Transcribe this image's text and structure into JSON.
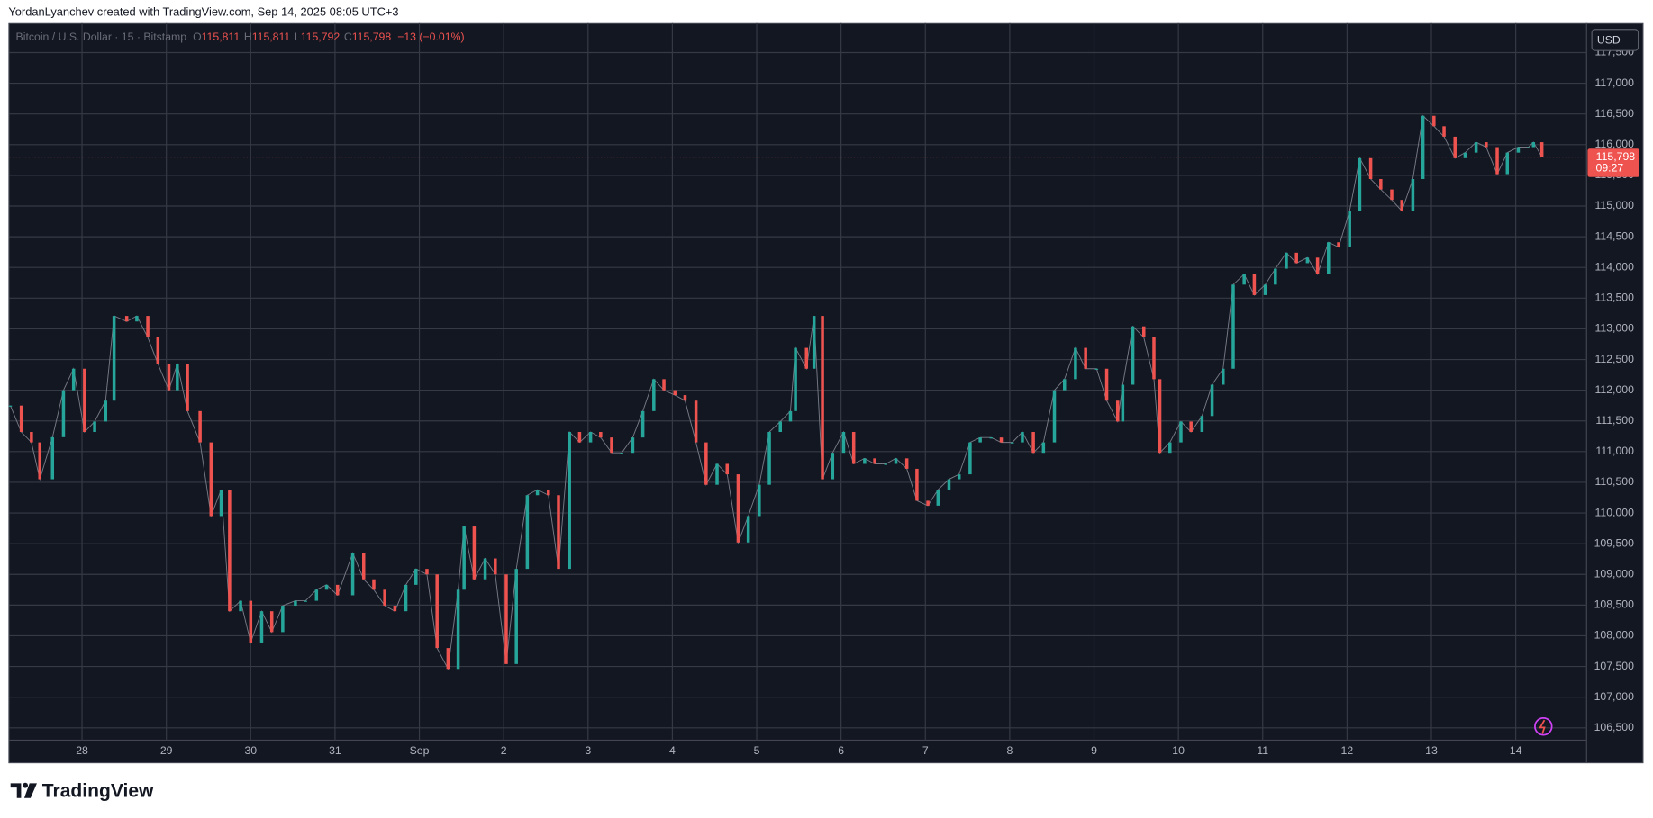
{
  "header": {
    "text": "YordanLyanchev created with TradingView.com, Sep 14, 2025 08:05 UTC+3"
  },
  "footer": {
    "brand": "TradingView"
  },
  "chart_data": {
    "type": "line",
    "legend": {
      "symbol": "Bitcoin / U.S. Dollar · 15 · Bitstamp",
      "items": [
        {
          "key": "O",
          "value": "115,811"
        },
        {
          "key": "H",
          "value": "115,811"
        },
        {
          "key": "L",
          "value": "115,792"
        },
        {
          "key": "C",
          "value": "115,798"
        }
      ],
      "change": "−13 (−0.01%)"
    },
    "currency": "USD",
    "last_price": {
      "value": 115798,
      "label": "115,798"
    },
    "countdown": "09:27",
    "up_color": "#26a69a",
    "down_color": "#ef5350",
    "grid": true,
    "xlim": [
      27.14,
      45.84
    ],
    "xticks": [
      {
        "value": 28,
        "label": "28"
      },
      {
        "value": 29,
        "label": "29"
      },
      {
        "value": 30,
        "label": "30"
      },
      {
        "value": 31,
        "label": "31"
      },
      {
        "value": 32,
        "label": "Sep"
      },
      {
        "value": 33,
        "label": "2"
      },
      {
        "value": 34,
        "label": "3"
      },
      {
        "value": 35,
        "label": "4"
      },
      {
        "value": 36,
        "label": "5"
      },
      {
        "value": 37,
        "label": "6"
      },
      {
        "value": 38,
        "label": "7"
      },
      {
        "value": 39,
        "label": "8"
      },
      {
        "value": 40,
        "label": "9"
      },
      {
        "value": 41,
        "label": "10"
      },
      {
        "value": 42,
        "label": "11"
      },
      {
        "value": 43,
        "label": "12"
      },
      {
        "value": 44,
        "label": "13"
      },
      {
        "value": 45,
        "label": "14"
      }
    ],
    "ylim": [
      106300,
      117980
    ],
    "yticks": [
      {
        "value": 106500,
        "label": "106,500"
      },
      {
        "value": 107000,
        "label": "107,000"
      },
      {
        "value": 107500,
        "label": "107,500"
      },
      {
        "value": 108000,
        "label": "108,000"
      },
      {
        "value": 108500,
        "label": "108,500"
      },
      {
        "value": 109000,
        "label": "109,000"
      },
      {
        "value": 109500,
        "label": "109,500"
      },
      {
        "value": 110000,
        "label": "110,000"
      },
      {
        "value": 110500,
        "label": "110,500"
      },
      {
        "value": 111000,
        "label": "111,000"
      },
      {
        "value": 111500,
        "label": "111,500"
      },
      {
        "value": 112000,
        "label": "112,000"
      },
      {
        "value": 112500,
        "label": "112,500"
      },
      {
        "value": 113000,
        "label": "113,000"
      },
      {
        "value": 113500,
        "label": "113,500"
      },
      {
        "value": 114000,
        "label": "114,000"
      },
      {
        "value": 114500,
        "label": "114,500"
      },
      {
        "value": 115000,
        "label": "115,000"
      },
      {
        "value": 115500,
        "label": "115,500"
      },
      {
        "value": 116000,
        "label": "116,000"
      },
      {
        "value": 116500,
        "label": "116,500"
      },
      {
        "value": 117000,
        "label": "117,000"
      },
      {
        "value": 117500,
        "label": "117,500"
      }
    ],
    "x": [
      27.15,
      27.28,
      27.4,
      27.5,
      27.65,
      27.78,
      27.9,
      28.03,
      28.15,
      28.28,
      28.38,
      28.53,
      28.65,
      28.78,
      28.9,
      29.03,
      29.13,
      29.25,
      29.4,
      29.53,
      29.65,
      29.75,
      29.88,
      30,
      30.13,
      30.25,
      30.38,
      30.53,
      30.65,
      30.78,
      30.9,
      31.03,
      31.21,
      31.34,
      31.46,
      31.59,
      31.71,
      31.84,
      31.96,
      32.09,
      32.21,
      32.34,
      32.46,
      32.53,
      32.65,
      32.78,
      32.9,
      33.03,
      33.15,
      33.28,
      33.4,
      33.53,
      33.65,
      33.78,
      33.9,
      34.03,
      34.15,
      34.28,
      34.4,
      34.53,
      34.65,
      34.78,
      34.9,
      35.03,
      35.15,
      35.28,
      35.4,
      35.53,
      35.65,
      35.78,
      35.9,
      36.03,
      36.15,
      36.28,
      36.4,
      36.46,
      36.59,
      36.68,
      36.78,
      36.9,
      37.03,
      37.15,
      37.28,
      37.4,
      37.53,
      37.65,
      37.78,
      37.9,
      38.03,
      38.15,
      38.28,
      38.4,
      38.53,
      38.65,
      38.78,
      38.9,
      39.03,
      39.15,
      39.28,
      39.4,
      39.53,
      39.65,
      39.78,
      39.9,
      40.03,
      40.15,
      40.28,
      40.34,
      40.46,
      40.59,
      40.71,
      40.78,
      40.9,
      41.03,
      41.15,
      41.28,
      41.4,
      41.53,
      41.65,
      41.78,
      41.9,
      42.03,
      42.15,
      42.28,
      42.4,
      42.53,
      42.65,
      42.78,
      42.9,
      43.03,
      43.15,
      43.28,
      43.4,
      43.53,
      43.65,
      43.78,
      43.9,
      44.03,
      44.15,
      44.28,
      44.4,
      44.53,
      44.65,
      44.78,
      44.9,
      45.03,
      45.15,
      45.21,
      45.31
    ],
    "values": [
      111750,
      111320,
      111150,
      110550,
      111235,
      112000,
      112350,
      111320,
      111490,
      111830,
      113210,
      113120,
      113210,
      112860,
      112430,
      112000,
      112430,
      111660,
      111150,
      109950,
      110380,
      108400,
      108570,
      107890,
      108400,
      108060,
      108490,
      108570,
      108570,
      108750,
      108830,
      108660,
      109350,
      108920,
      108750,
      108490,
      108400,
      108830,
      109090,
      109000,
      107800,
      107460,
      108750,
      109780,
      108920,
      109260,
      109000,
      107540,
      109090,
      110290,
      110380,
      110290,
      109090,
      111320,
      111150,
      111320,
      111230,
      110980,
      110980,
      111230,
      111660,
      112180,
      112000,
      111920,
      111830,
      111150,
      110460,
      110800,
      110630,
      109520,
      109950,
      110460,
      111320,
      111490,
      111660,
      112690,
      112350,
      113210,
      110550,
      110980,
      111320,
      110800,
      110890,
      110800,
      110800,
      110890,
      110720,
      110200,
      110120,
      110380,
      110550,
      110630,
      111150,
      111230,
      111230,
      111150,
      111150,
      111320,
      110980,
      111150,
      112000,
      112180,
      112690,
      112350,
      112350,
      111830,
      111490,
      112090,
      113040,
      112860,
      112180,
      110980,
      111150,
      111490,
      111320,
      111580,
      112090,
      112350,
      113720,
      113890,
      113550,
      113720,
      113980,
      114240,
      114070,
      114160,
      113890,
      114410,
      114330,
      114920,
      115780,
      115440,
      115270,
      115100,
      114920,
      115440,
      116470,
      116300,
      116130,
      115780,
      115870,
      116040,
      115960,
      115520,
      115870,
      115960,
      115960,
      116040,
      115798
    ]
  }
}
